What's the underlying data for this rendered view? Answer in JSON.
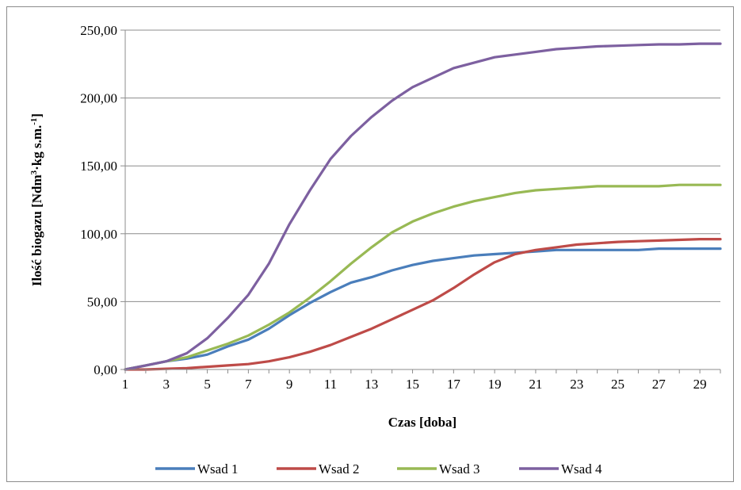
{
  "chart_data": {
    "type": "line",
    "title": "",
    "xlabel": "Czas [doba]",
    "ylabel": {
      "prefix": "Ilość biogazu [Ndm",
      "sup1": "3",
      "mid": "·kg s.m.",
      "sup2": "-1",
      "suffix": "]"
    },
    "x": [
      1,
      2,
      3,
      4,
      5,
      6,
      7,
      8,
      9,
      10,
      11,
      12,
      13,
      14,
      15,
      16,
      17,
      18,
      19,
      20,
      21,
      22,
      23,
      24,
      25,
      26,
      27,
      28,
      29,
      30
    ],
    "x_tick_labels": [
      "1",
      "3",
      "5",
      "7",
      "9",
      "11",
      "13",
      "15",
      "17",
      "19",
      "21",
      "23",
      "25",
      "27",
      "29"
    ],
    "x_tick_values": [
      1,
      3,
      5,
      7,
      9,
      11,
      13,
      15,
      17,
      19,
      21,
      23,
      25,
      27,
      29
    ],
    "xlim": [
      1,
      30
    ],
    "ylim": [
      0,
      250
    ],
    "y_ticks": [
      0,
      50,
      100,
      150,
      200,
      250
    ],
    "y_tick_labels": [
      "0,00",
      "50,00",
      "100,00",
      "150,00",
      "200,00",
      "250,00"
    ],
    "grid": "horizontal",
    "legend_position": "bottom",
    "series": [
      {
        "name": "Wsad 1",
        "color": "#4a7ebb",
        "values": [
          0,
          3,
          6,
          8,
          11,
          17,
          22,
          30,
          40,
          49,
          57,
          64,
          68,
          73,
          77,
          80,
          82,
          84,
          85,
          86,
          87,
          88,
          88,
          88,
          88,
          88,
          89,
          89,
          89,
          89
        ]
      },
      {
        "name": "Wsad 2",
        "color": "#be4b48",
        "values": [
          0,
          0,
          0.5,
          1,
          2,
          3,
          4,
          6,
          9,
          13,
          18,
          24,
          30,
          37,
          44,
          51,
          60,
          70,
          79,
          85,
          88,
          90,
          92,
          93,
          94,
          94.5,
          95,
          95.5,
          96,
          96
        ]
      },
      {
        "name": "Wsad 3",
        "color": "#98b954",
        "values": [
          0,
          3,
          6,
          9,
          14,
          19,
          25,
          33,
          42,
          53,
          65,
          78,
          90,
          101,
          109,
          115,
          120,
          124,
          127,
          130,
          132,
          133,
          134,
          135,
          135,
          135,
          135,
          136,
          136,
          136
        ]
      },
      {
        "name": "Wsad 4",
        "color": "#7d60a0",
        "values": [
          0,
          3,
          6,
          12,
          23,
          38,
          55,
          78,
          107,
          132,
          155,
          172,
          186,
          198,
          208,
          215,
          222,
          226,
          230,
          232,
          234,
          236,
          237,
          238,
          238.5,
          239,
          239.5,
          239.5,
          240,
          240
        ]
      }
    ]
  }
}
